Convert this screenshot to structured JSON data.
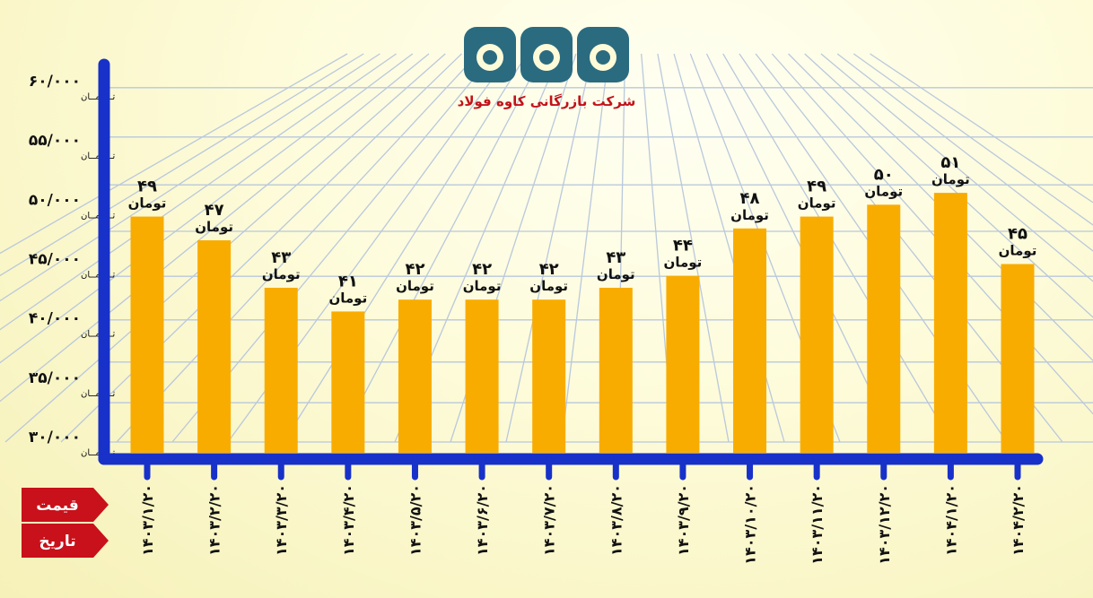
{
  "logo": {
    "glyphs": "کاوه",
    "company": "شرکت بازرگانی کاوه فولاد",
    "colors": {
      "shape": "#2b6b80",
      "text": "#c2131b"
    }
  },
  "legend": {
    "price_label": "قیمت",
    "date_label": "تاریخ",
    "color": "#c8111a"
  },
  "colors": {
    "bar": "#f9ac00",
    "axis": "#1731c9",
    "grid": "#b9c8dc"
  },
  "chart_data": {
    "type": "bar",
    "categories": [
      "۱۴۰۳/۱/۲۰",
      "۱۴۰۳/۲/۲۰",
      "۱۴۰۳/۳/۲۰",
      "۱۴۰۳/۴/۲۰",
      "۱۴۰۳/۵/۲۰",
      "۱۴۰۳/۶/۲۰",
      "۱۴۰۳/۷/۲۰",
      "۱۴۰۳/۸/۲۰",
      "۱۴۰۳/۹/۲۰",
      "۱۴۰۳/۱۰/۲۰",
      "۱۴۰۳/۱۱/۲۰",
      "۱۴۰۳/۱۲/۲۰",
      "۱۴۰۴/۱/۲۰",
      "۱۴۰۴/۲/۲۰"
    ],
    "values": [
      49000,
      47000,
      43000,
      41000,
      42000,
      42000,
      42000,
      43000,
      44000,
      48000,
      49000,
      50000,
      51000,
      45000
    ],
    "value_labels": [
      "۴۹",
      "۴۷",
      "۴۳",
      "۴۱",
      "۴۲",
      "۴۲",
      "۴۲",
      "۴۳",
      "۴۴",
      "۴۸",
      "۴۹",
      "۵۰",
      "۵۱",
      "۴۵"
    ],
    "value_unit": "تومان",
    "yticks": [
      30000,
      35000,
      40000,
      45000,
      50000,
      55000,
      60000
    ],
    "ytick_labels": [
      "۳۰/۰۰۰",
      "۳۵/۰۰۰",
      "۴۰/۰۰۰",
      "۴۵/۰۰۰",
      "۵۰/۰۰۰",
      "۵۵/۰۰۰",
      "۶۰/۰۰۰"
    ],
    "ytick_unit": "تـــومــان",
    "ylim": [
      30000,
      60000
    ],
    "title": "",
    "xlabel": "",
    "ylabel": "",
    "grid": true
  }
}
